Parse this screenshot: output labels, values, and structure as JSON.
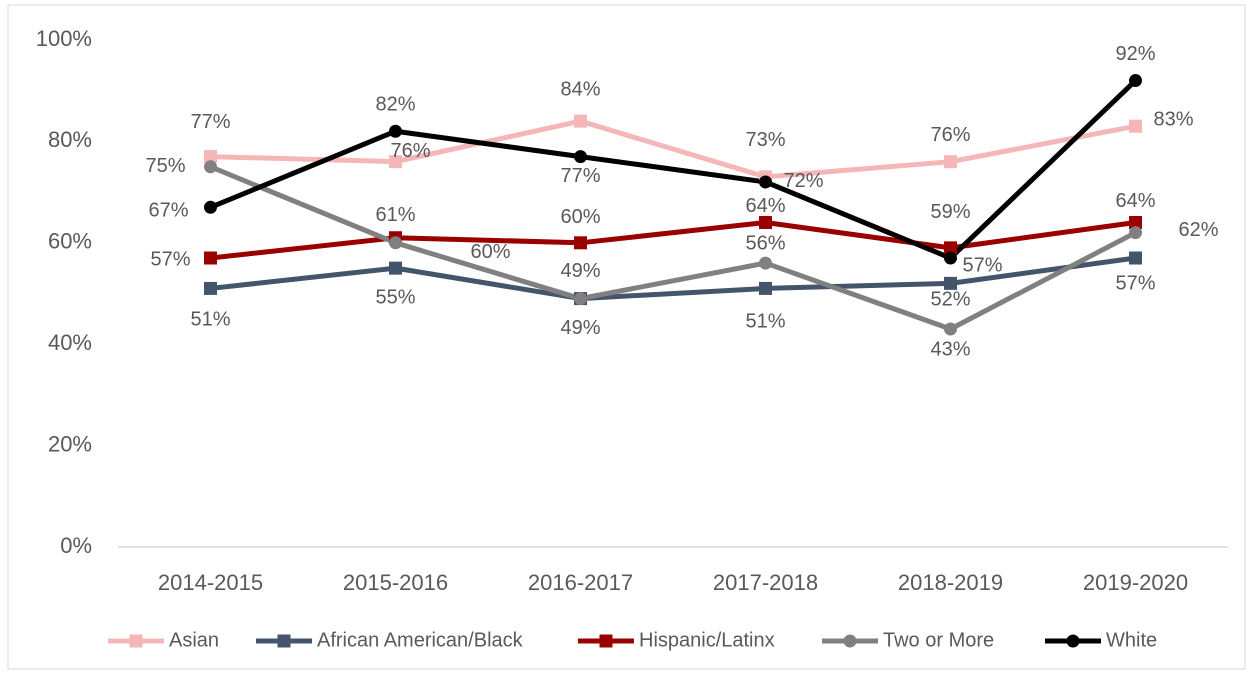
{
  "chart_data": {
    "type": "line",
    "categories": [
      "2014-2015",
      "2015-2016",
      "2016-2017",
      "2017-2018",
      "2018-2019",
      "2019-2020"
    ],
    "series": [
      {
        "name": "Asian",
        "color": "#f4b6b6",
        "marker": "square",
        "values": [
          77,
          76,
          84,
          73,
          76,
          83
        ],
        "value_labels": [
          "77%",
          "76%",
          "84%",
          "73%",
          "76%",
          "83%"
        ]
      },
      {
        "name": "African American/Black",
        "color": "#44546a",
        "marker": "square",
        "values": [
          51,
          55,
          49,
          51,
          52,
          57
        ],
        "value_labels": [
          "51%",
          "55%",
          "49%",
          "51%",
          "52%",
          "57%"
        ]
      },
      {
        "name": "Hispanic/Latinx",
        "color": "#9b0000",
        "marker": "square",
        "values": [
          57,
          61,
          60,
          64,
          59,
          64
        ],
        "value_labels": [
          "57%",
          "61%",
          "60%",
          "64%",
          "59%",
          "64%"
        ]
      },
      {
        "name": "Two or More",
        "color": "#808080",
        "marker": "circle",
        "values": [
          75,
          60,
          49,
          56,
          43,
          62
        ],
        "value_labels": [
          "75%",
          "60%",
          "49%",
          "56%",
          "43%",
          "62%"
        ]
      },
      {
        "name": "White",
        "color": "#000000",
        "marker": "circle",
        "values": [
          67,
          82,
          77,
          72,
          57,
          92
        ],
        "value_labels": [
          "67%",
          "82%",
          "77%",
          "72%",
          "57%",
          "92%"
        ]
      }
    ],
    "ylim": [
      0,
      100
    ],
    "yticks": [
      {
        "value": 0,
        "label": "0%"
      },
      {
        "value": 20,
        "label": "20%"
      },
      {
        "value": 40,
        "label": "40%"
      },
      {
        "value": 60,
        "label": "60%"
      },
      {
        "value": 80,
        "label": "80%"
      },
      {
        "value": 100,
        "label": "100%"
      }
    ],
    "legend": "bottom"
  }
}
